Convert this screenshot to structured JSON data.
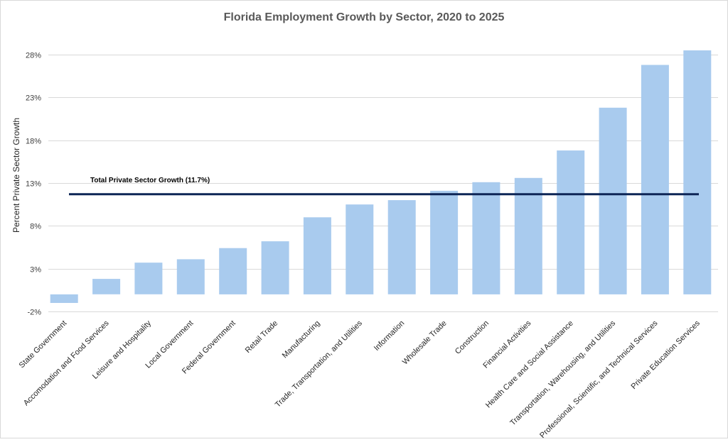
{
  "chart_data": {
    "type": "bar",
    "title": "Florida Employment Growth by Sector, 2020 to 2025",
    "xlabel": "",
    "ylabel": "Percent Private Sector Growth",
    "ylim": [
      -2,
      29
    ],
    "yticks": [
      -2,
      3,
      8,
      13,
      18,
      23,
      28
    ],
    "ytick_labels": [
      "-2%",
      "3%",
      "8%",
      "13%",
      "18%",
      "23%",
      "28%"
    ],
    "grid": true,
    "color": "#a9cbee",
    "categories": [
      "State Government",
      "Accomodation and Food Services",
      "Leisure and Hospitality",
      "Local Government",
      "Federal Government",
      "Retail Trade",
      "Manufacturing",
      "Trade, Transportation, and Utilities",
      "Information",
      "Wholesale Trade",
      "Construction",
      "Financial Activities",
      "Health Care and Social Assistance",
      "Transportation, Warehousing, and Utilities",
      "Professional, Scientific, and Technical Services",
      "Private Education Services"
    ],
    "values": [
      -1.0,
      1.8,
      3.7,
      4.1,
      5.4,
      6.2,
      9.0,
      10.5,
      11.0,
      12.1,
      13.1,
      13.6,
      16.8,
      21.8,
      26.8,
      28.5
    ],
    "reference_line": {
      "label": "Total Private Sector Growth (11.7%)",
      "value": 11.7,
      "color": "#0d2556"
    }
  }
}
